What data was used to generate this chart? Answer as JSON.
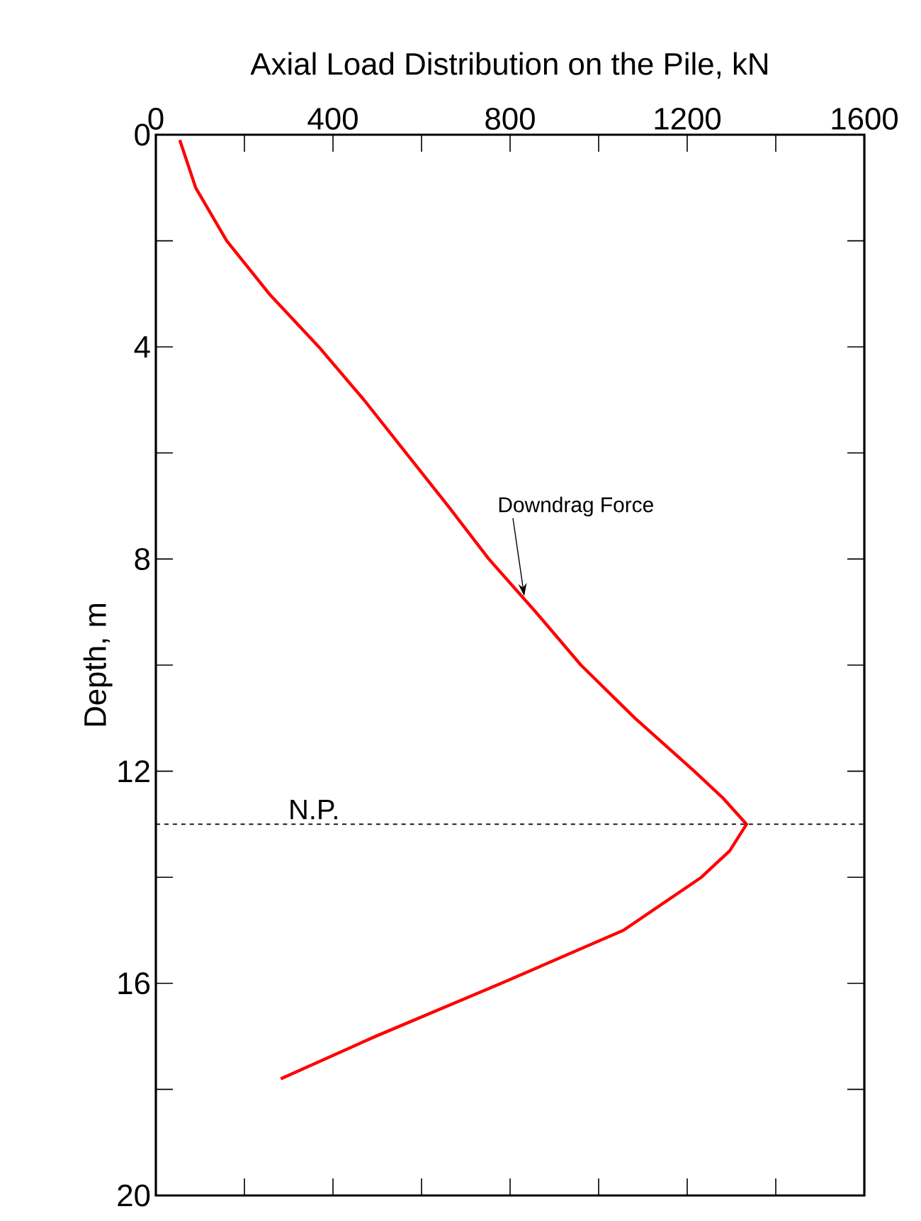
{
  "chart_data": {
    "type": "line",
    "xlabel": "Axial Load Distribution on the Pile, kN",
    "ylabel": "Depth, m",
    "xlim": [
      0,
      1600
    ],
    "xticks": [
      0,
      400,
      800,
      1200,
      1600
    ],
    "ylim": [
      20,
      0
    ],
    "yticks": [
      0,
      4,
      8,
      12,
      16,
      20
    ],
    "series": [
      {
        "color": "#ff0000",
        "line_style": "solid",
        "marker": "none",
        "x": [
          54,
          90,
          160,
          256,
          368,
          470,
          565,
          660,
          752,
          858,
          960,
          1082,
          1216,
          1280,
          1334,
          1296,
          1232,
          1056,
          780,
          496,
          282
        ],
        "values": [
          0.1,
          1,
          2,
          3,
          4,
          5,
          6,
          7,
          8,
          9,
          10,
          11,
          12,
          12.5,
          13,
          13.5,
          14,
          15,
          16,
          17,
          17.8
        ]
      }
    ],
    "ref_lines": [
      {
        "axis": "y",
        "value": 13,
        "label": "N.P.",
        "color": "#000000",
        "line_style": "dashed"
      }
    ],
    "annotations": [
      {
        "text": "Downdrag Force",
        "x": 832,
        "y": 8.7
      }
    ],
    "grid": false
  }
}
